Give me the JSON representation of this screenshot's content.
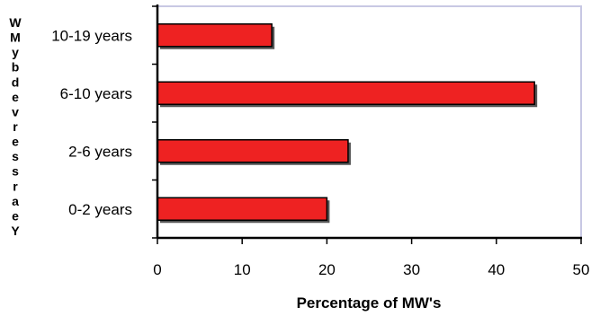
{
  "chart_data": {
    "type": "bar",
    "orientation": "horizontal",
    "categories": [
      "10-19 years",
      "6-10 years",
      "2-6 years",
      "0-2 years"
    ],
    "values": [
      13.5,
      44.5,
      22.5,
      20
    ],
    "xlabel": "Percentage of MW's",
    "ylabel": "Years served by MW",
    "ylabel_rendered": "WMybdevressraeY",
    "xlim": [
      0,
      50
    ],
    "xticks": [
      "0",
      "10",
      "20",
      "30",
      "40",
      "50"
    ],
    "grid": false,
    "legend": "none",
    "colors": {
      "bar_fill": "#ee2222",
      "bar_stroke": "#000000",
      "bar_shadow": "#555555",
      "plot_border": "#c8c8e4",
      "axis": "#000000"
    }
  }
}
